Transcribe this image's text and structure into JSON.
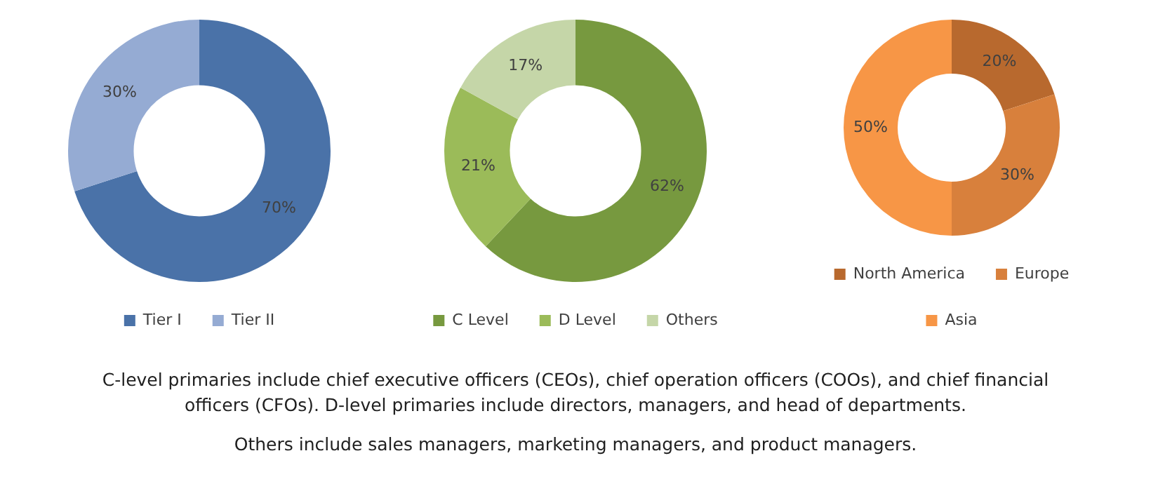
{
  "chart_data": [
    {
      "type": "donut",
      "categories": [
        "Tier I",
        "Tier II"
      ],
      "values": [
        70,
        30
      ],
      "colors": [
        "#4a72a8",
        "#95abd3"
      ],
      "value_labels": [
        "70%",
        "30%"
      ],
      "legend": "bottom"
    },
    {
      "type": "donut",
      "categories": [
        "C Level",
        "D Level",
        "Others"
      ],
      "values": [
        62,
        21,
        17
      ],
      "colors": [
        "#77993f",
        "#9bbb59",
        "#c5d6a8"
      ],
      "value_labels": [
        "62%",
        "21%",
        "17%"
      ],
      "legend": "bottom"
    },
    {
      "type": "donut",
      "categories": [
        "North America",
        "Europe",
        "Asia"
      ],
      "values": [
        20,
        30,
        50
      ],
      "colors": [
        "#b8692e",
        "#d8803c",
        "#f79646"
      ],
      "value_labels": [
        "20%",
        "30%",
        "50%"
      ],
      "legend": "bottom"
    },
    {
      "type": "other",
      "annotations": [
        "C-level primaries include chief executive officers (CEOs), chief operation officers (COOs), and chief financial officers (CFOs). D-level primaries include directors, managers, and head of departments.",
        "Others include sales managers, marketing managers, and product managers."
      ]
    }
  ]
}
